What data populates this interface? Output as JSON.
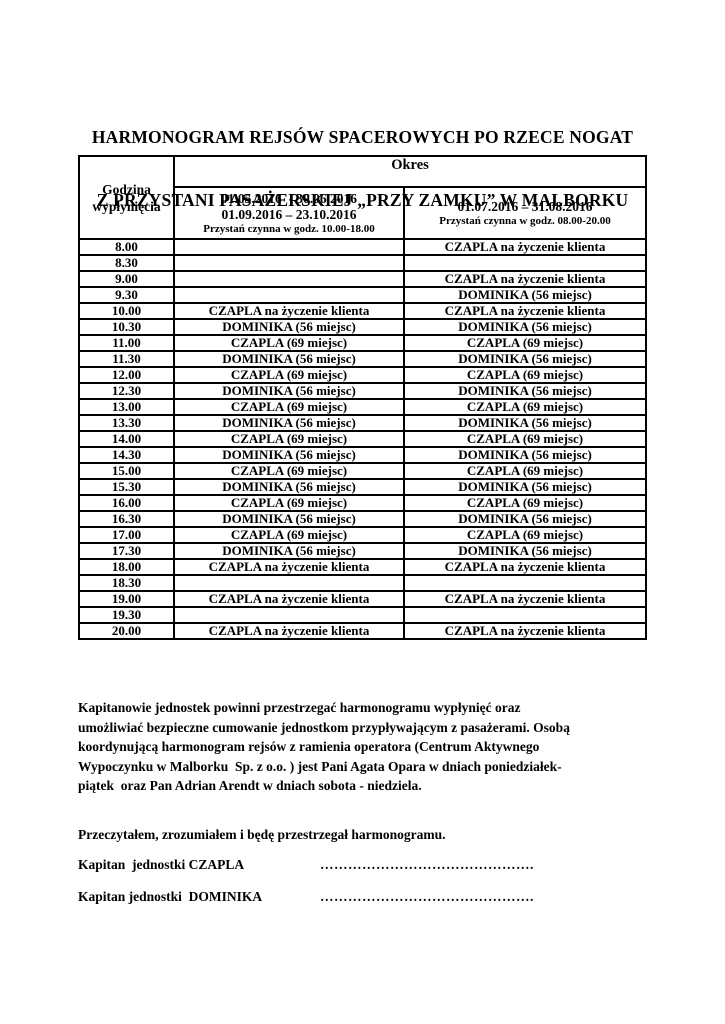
{
  "title": {
    "line1": "HARMONOGRAM REJSÓW SPACEROWYCH PO RZECE NOGAT",
    "line2": "Z PRZYSTANI PASAŻERSKIEJ „PRZY ZAMKU” W MALBORKU"
  },
  "table": {
    "corner_header": "Godzina wypłynięcia",
    "okres_header": "Okres",
    "period1": {
      "dates_line1": "01.05.2016  - 30.06.2016",
      "dates_line2": "01.09.2016 – 23.10.2016",
      "hours": "Przystań czynna w godz. 10.00-18.00"
    },
    "period2": {
      "dates_line1": "01.07.2016 – 31.08.2016",
      "hours": "Przystań czynna w godz. 08.00-20.00"
    },
    "rows": [
      {
        "time": "8.00",
        "p1": "",
        "p2": "CZAPLA na życzenie klienta"
      },
      {
        "time": "8.30",
        "p1": "",
        "p2": ""
      },
      {
        "time": "9.00",
        "p1": "",
        "p2": "CZAPLA na życzenie klienta"
      },
      {
        "time": "9.30",
        "p1": "",
        "p2": "DOMINIKA (56 miejsc)"
      },
      {
        "time": "10.00",
        "p1": "CZAPLA na życzenie klienta",
        "p2": "CZAPLA na życzenie klienta"
      },
      {
        "time": "10.30",
        "p1": "DOMINIKA (56 miejsc)",
        "p2": "DOMINIKA (56 miejsc)"
      },
      {
        "time": "11.00",
        "p1": "CZAPLA (69 miejsc)",
        "p2": "CZAPLA (69 miejsc)"
      },
      {
        "time": "11.30",
        "p1": "DOMINIKA (56 miejsc)",
        "p2": "DOMINIKA (56 miejsc)"
      },
      {
        "time": "12.00",
        "p1": "CZAPLA (69 miejsc)",
        "p2": "CZAPLA (69 miejsc)"
      },
      {
        "time": "12.30",
        "p1": "DOMINIKA (56 miejsc)",
        "p2": "DOMINIKA (56 miejsc)"
      },
      {
        "time": "13.00",
        "p1": "CZAPLA (69 miejsc)",
        "p2": "CZAPLA (69 miejsc)"
      },
      {
        "time": "13.30",
        "p1": "DOMINIKA (56 miejsc)",
        "p2": "DOMINIKA (56 miejsc)"
      },
      {
        "time": "14.00",
        "p1": "CZAPLA (69 miejsc)",
        "p2": "CZAPLA (69 miejsc)"
      },
      {
        "time": "14.30",
        "p1": "DOMINIKA (56 miejsc)",
        "p2": "DOMINIKA (56 miejsc)"
      },
      {
        "time": "15.00",
        "p1": "CZAPLA (69 miejsc)",
        "p2": "CZAPLA (69 miejsc)"
      },
      {
        "time": "15.30",
        "p1": "DOMINIKA (56 miejsc)",
        "p2": "DOMINIKA (56 miejsc)"
      },
      {
        "time": "16.00",
        "p1": "CZAPLA (69 miejsc)",
        "p2": "CZAPLA (69 miejsc)"
      },
      {
        "time": "16.30",
        "p1": "DOMINIKA (56 miejsc)",
        "p2": "DOMINIKA (56 miejsc)"
      },
      {
        "time": "17.00",
        "p1": "CZAPLA (69 miejsc)",
        "p2": "CZAPLA (69 miejsc)"
      },
      {
        "time": "17.30",
        "p1": "DOMINIKA (56 miejsc)",
        "p2": "DOMINIKA (56 miejsc)"
      },
      {
        "time": "18.00",
        "p1": "CZAPLA na życzenie klienta",
        "p2": "CZAPLA na życzenie klienta"
      },
      {
        "time": "18.30",
        "p1": "",
        "p2": ""
      },
      {
        "time": "19.00",
        "p1": "CZAPLA na życzenie klienta",
        "p2": "CZAPLA na życzenie klienta"
      },
      {
        "time": "19.30",
        "p1": "",
        "p2": ""
      },
      {
        "time": "20.00",
        "p1": "CZAPLA na życzenie klienta",
        "p2": "CZAPLA na życzenie klienta"
      }
    ]
  },
  "notes": {
    "lines": [
      "Kapitanowie jednostek powinni przestrzegać harmonogramu wypłynięć oraz",
      "umożliwiać bezpieczne cumowanie jednostkom przypływającym z pasażerami. Osobą",
      "koordynującą harmonogram rejsów z ramienia operatora (Centrum Aktywnego",
      "Wypoczynku w Malborku  Sp. z o.o. ) jest Pani Agata Opara w dniach poniedziałek-",
      "piątek  oraz Pan Adrian Arendt w dniach sobota - niedziela."
    ]
  },
  "signature": {
    "statement": "Przeczytałem, zrozumiałem i będę przestrzegał harmonogramu.",
    "captain1_label": "Kapitan  jednostki CZAPLA",
    "captain1_dots": "……………………………………….",
    "captain2_label": "Kapitan jednostki  DOMINIKA",
    "captain2_dots": "………………………………………."
  },
  "colors": {
    "text": "#000000",
    "background": "#ffffff"
  }
}
